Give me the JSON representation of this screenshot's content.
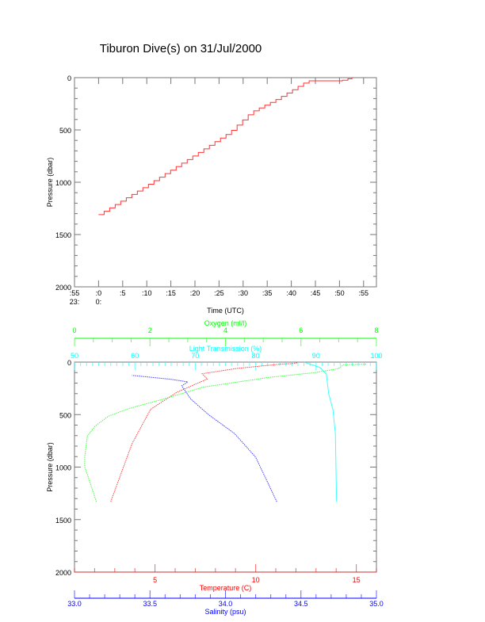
{
  "title": "Tiburon Dive(s) on 31/Jul/2000",
  "colors": {
    "axis": "#777777",
    "text": "#000000",
    "track": "#ff3333",
    "temperature": "#ff0000",
    "oxygen": "#00ff00",
    "light_transmission": "#00ffff",
    "salinity": "#0000ff"
  },
  "chart_data": [
    {
      "type": "line",
      "line_style": "step",
      "xlabel": "Time (UTC)",
      "ylabel": "Pressure (dbar)",
      "xlim": [
        "23:55:00",
        "00:57:40"
      ],
      "ylim": [
        2000,
        0
      ],
      "y_inverted": true,
      "x_ticks": [
        {
          "t": "23:55:00",
          "label": ":55",
          "sub": "23:"
        },
        {
          "t": "00:00:00",
          "label": ":0",
          "sub": "0:"
        },
        {
          "t": "00:05:00",
          "label": ":5"
        },
        {
          "t": "00:10:00",
          "label": ":10"
        },
        {
          "t": "00:15:00",
          "label": ":15"
        },
        {
          "t": "00:20:00",
          "label": ":20"
        },
        {
          "t": "00:25:00",
          "label": ":25"
        },
        {
          "t": "00:30:00",
          "label": ":30"
        },
        {
          "t": "00:35:00",
          "label": ":35"
        },
        {
          "t": "00:40:00",
          "label": ":40"
        },
        {
          "t": "00:45:00",
          "label": ":45"
        },
        {
          "t": "00:50:00",
          "label": ":50"
        },
        {
          "t": "00:55:00",
          "label": ":55"
        }
      ],
      "y_ticks": [
        "0",
        "500",
        "1000",
        "1500",
        "2000"
      ],
      "grid": false,
      "series": [
        {
          "time": [
            "00:00:00",
            "00:09:42",
            "00:19:36",
            "00:27:12",
            "00:31:36",
            "00:37:00",
            "00:42:30",
            "00:43:20",
            "00:50:10",
            "00:51:20",
            "00:52:36"
          ],
          "pressure": [
            1310,
            1038,
            748,
            521,
            331,
            205,
            53,
            30,
            30,
            15,
            0
          ]
        }
      ]
    },
    {
      "type": "scatter",
      "ylabel": "Pressure (dbar)",
      "ylim": [
        2000,
        0
      ],
      "y_inverted": true,
      "y_ticks": [
        "0",
        "500",
        "1000",
        "1500",
        "2000"
      ],
      "grid": false,
      "axes": {
        "oxygen": {
          "label": "Oxygen (ml/l)",
          "position": "top",
          "range": [
            0,
            8
          ],
          "ticks": [
            "0",
            "2",
            "4",
            "6",
            "8"
          ]
        },
        "light_transmission": {
          "label": "Light Transmission (%)",
          "position": "top",
          "range": [
            50,
            100
          ],
          "ticks": [
            "50",
            "60",
            "70",
            "80",
            "90",
            "100"
          ]
        },
        "temperature": {
          "label": "Temperature (C)",
          "position": "bottom",
          "range": [
            1,
            16
          ],
          "ticks": [
            "5",
            "10",
            "15"
          ]
        },
        "salinity": {
          "label": "Salinity (psu)",
          "position": "bottom",
          "range": [
            33.0,
            35.0
          ],
          "ticks": [
            "33.0",
            "33.5",
            "34.0",
            "34.5",
            "35.0"
          ]
        }
      },
      "series": [
        {
          "key": "temperature",
          "pressure": [
            1330,
            777,
            450,
            287,
            161,
            111,
            60,
            18,
            15,
            5
          ],
          "values": [
            2.8,
            3.86,
            4.78,
            6.09,
            7.6,
            7.34,
            9.1,
            11.3,
            11.8,
            12.1
          ]
        },
        {
          "key": "oxygen",
          "pressure": [
            1330,
            1070,
            1000,
            906,
            705,
            608,
            515,
            440,
            351,
            238,
            145,
            100,
            63,
            25,
            20
          ],
          "values": [
            0.58,
            0.34,
            0.27,
            0.27,
            0.34,
            0.55,
            0.9,
            1.46,
            2.37,
            3.42,
            5.17,
            6.36,
            6.99,
            7.13,
            7.75
          ]
        },
        {
          "key": "light_transmission",
          "pressure": [
            1330,
            680,
            453,
            302,
            114,
            50,
            0
          ],
          "values": [
            93.4,
            93.2,
            92.8,
            92.1,
            91.7,
            90.6,
            88.0
          ]
        },
        {
          "key": "salinity",
          "pressure": [
            1330,
            906,
            680,
            503,
            352,
            226,
            189,
            164,
            126
          ],
          "values": [
            34.34,
            34.2,
            34.06,
            33.89,
            33.77,
            33.71,
            33.75,
            33.64,
            33.38
          ]
        }
      ]
    }
  ]
}
